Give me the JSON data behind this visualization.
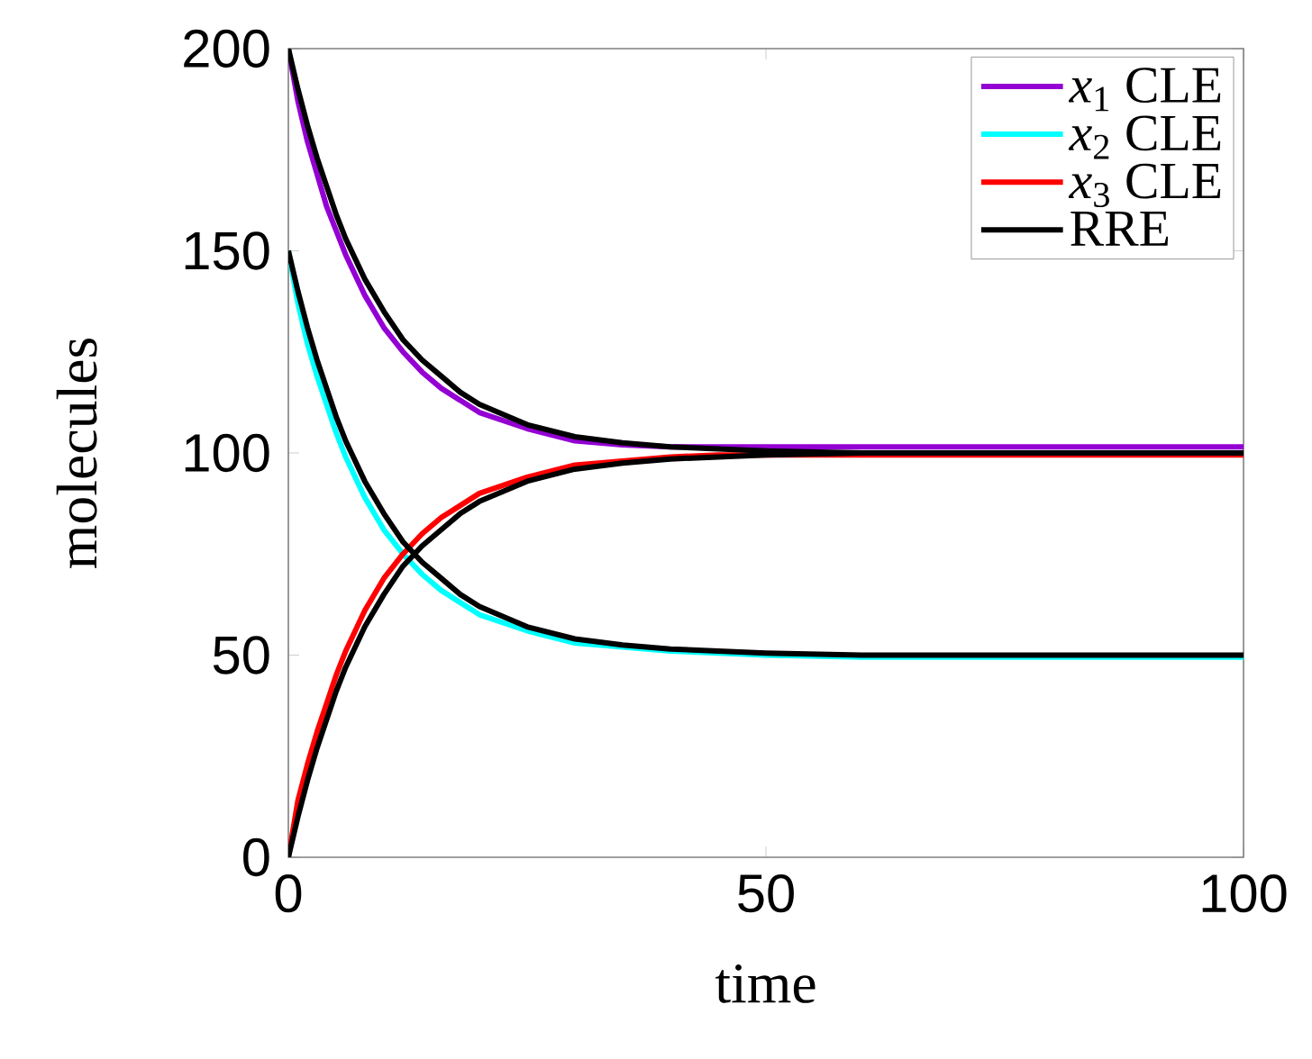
{
  "chart_data": {
    "type": "line",
    "xlabel": "time",
    "ylabel": "molecules",
    "x": [
      0,
      1,
      2,
      3,
      4,
      5,
      6,
      8,
      10,
      12,
      14,
      16,
      18,
      20,
      25,
      30,
      35,
      40,
      45,
      50,
      60,
      70,
      80,
      90,
      100
    ],
    "series": [
      {
        "name": "*x*$_{1}$ CLE",
        "color": "#9400d3",
        "values": [
          200,
          187,
          177,
          169,
          161,
          155,
          149,
          139,
          131,
          125,
          120,
          116,
          113,
          110,
          106,
          103,
          102,
          101.5,
          101.5,
          101.5,
          101.5,
          101.5,
          101.5,
          101.5,
          101.5
        ]
      },
      {
        "name": "*x*$_{2}$ CLE",
        "color": "#00ffff",
        "values": [
          150,
          137,
          127,
          119,
          112,
          105,
          99,
          89,
          81,
          75,
          70,
          66,
          63,
          60,
          56,
          53,
          52,
          51,
          50.5,
          50,
          49.5,
          49.5,
          49.5,
          49.5,
          49.5
        ]
      },
      {
        "name": "*x*$_{3}$ CLE",
        "color": "#ff0000",
        "values": [
          0,
          14,
          23,
          31,
          38,
          45,
          51,
          61,
          69,
          75,
          80,
          84,
          87,
          90,
          94,
          97,
          98,
          99,
          99.5,
          99.5,
          99.5,
          99.5,
          99.5,
          99.5,
          99.5
        ]
      },
      {
        "name": "RRE",
        "color": "#000000",
        "values": [
          200,
          190,
          181,
          173,
          166,
          159,
          153,
          143,
          135,
          128,
          123,
          119,
          115,
          112,
          107,
          104,
          102.5,
          101.5,
          101,
          100.5,
          100,
          100,
          100,
          100,
          100
        ]
      },
      {
        "color": "#000000",
        "values": [
          150,
          140,
          131,
          123,
          116,
          109,
          103,
          93,
          85,
          78,
          73,
          69,
          65,
          62,
          57,
          54,
          52.5,
          51.5,
          51,
          50.5,
          50,
          50,
          50,
          50,
          50
        ]
      },
      {
        "color": "#000000",
        "values": [
          0,
          10,
          19,
          27,
          34,
          41,
          47,
          57,
          65,
          72,
          77,
          81,
          85,
          88,
          93,
          96,
          97.5,
          98.5,
          99,
          99.5,
          100,
          100,
          100,
          100,
          100
        ]
      }
    ],
    "xlim": [
      0,
      100
    ],
    "ylim": [
      0,
      200
    ],
    "xticks": [
      0,
      50,
      100
    ],
    "yticks": [
      0,
      50,
      100,
      150,
      200
    ],
    "grid": false,
    "legend": "top right",
    "marker": "none",
    "line_style": "solid"
  }
}
